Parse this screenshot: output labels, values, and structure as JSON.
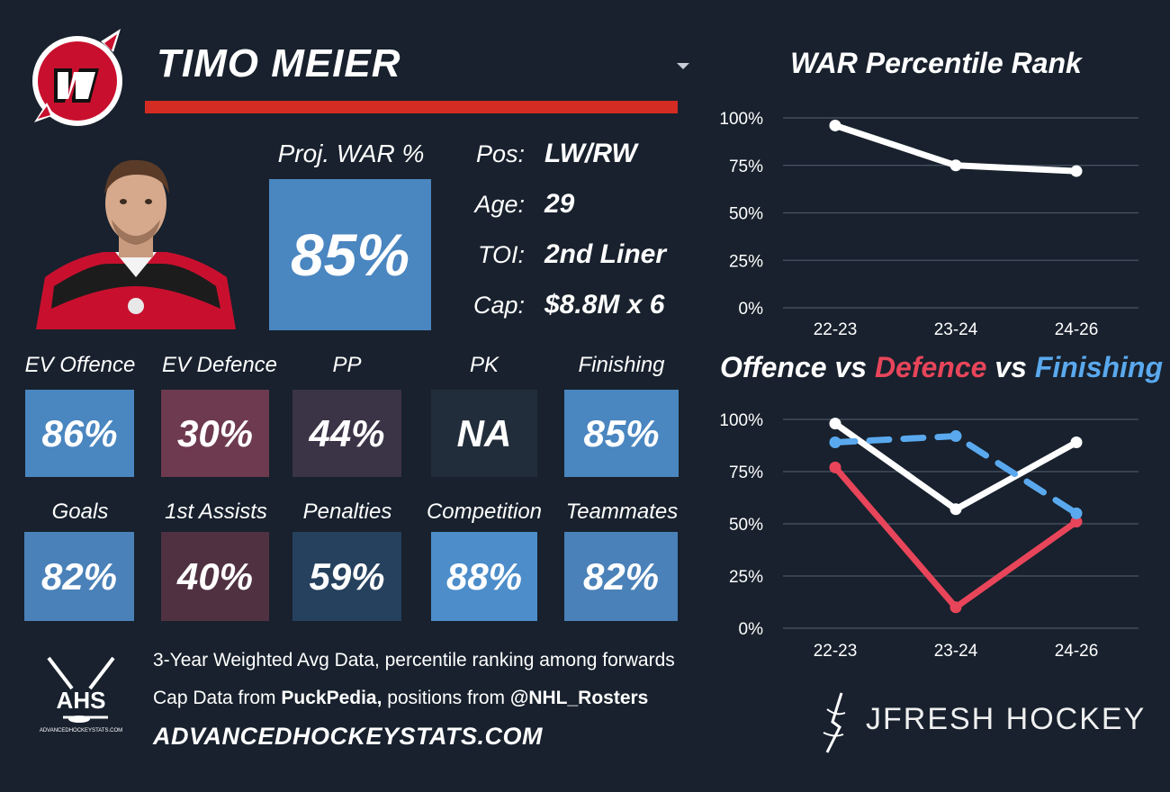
{
  "header": {
    "player_name": "TIMO MEIER",
    "team_logo": "nj-devils-logo",
    "dropdown_icon": "caret-down-icon"
  },
  "proj_war": {
    "label": "Proj. WAR %",
    "value": "85%"
  },
  "info": [
    {
      "label": "Pos:",
      "value": "LW/RW"
    },
    {
      "label": "Age:",
      "value": "29"
    },
    {
      "label": "TOI:",
      "value": "2nd Liner"
    },
    {
      "label": "Cap:",
      "value": "$8.8M x 6"
    }
  ],
  "stats_row1": [
    {
      "label": "EV Offence",
      "value": "86%",
      "color": "#4a86c0"
    },
    {
      "label": "EV Defence",
      "value": "30%",
      "color": "#6e3a4f"
    },
    {
      "label": "PP",
      "value": "44%",
      "color": "#3b3346"
    },
    {
      "label": "PK",
      "value": "NA",
      "color": "#222d3b"
    },
    {
      "label": "Finishing",
      "value": "85%",
      "color": "#4a86c0"
    }
  ],
  "stats_row2": [
    {
      "label": "Goals",
      "value": "82%",
      "color": "#4a81b8"
    },
    {
      "label": "1st Assists",
      "value": "40%",
      "color": "#503142"
    },
    {
      "label": "Penalties",
      "value": "59%",
      "color": "#26415e"
    },
    {
      "label": "Competition",
      "value": "88%",
      "color": "#4c8dca"
    },
    {
      "label": "Teammates",
      "value": "82%",
      "color": "#4a81b8"
    }
  ],
  "footer": {
    "line1": "3-Year Weighted Avg Data, percentile ranking among forwards",
    "line2_prefix": "Cap Data from ",
    "line2_source": "PuckPedia,",
    "line2_mid": " positions from ",
    "line2_handle": "@NHL_Rosters",
    "site": "ADVANCEDHOCKEYSTATS.COM",
    "ahs_logo_text": "AHS",
    "ahs_logo_caption": "ADVANCEDHOCKEYSTATS.COM",
    "brand": "JFRESH HOCKEY"
  },
  "chart_data": [
    {
      "type": "line",
      "title": "WAR Percentile Rank",
      "categories": [
        "22-23",
        "23-24",
        "24-26"
      ],
      "ylim": [
        0,
        100
      ],
      "yticks": [
        "0%",
        "25%",
        "50%",
        "75%",
        "100%"
      ],
      "grid": true,
      "series": [
        {
          "values": [
            96,
            75,
            72
          ],
          "color": "#ffffff",
          "dashed": false
        }
      ]
    },
    {
      "type": "line",
      "title_parts": [
        {
          "text": "Offence",
          "color": "#ffffff"
        },
        {
          "text": " vs ",
          "color": "#ffffff"
        },
        {
          "text": "Defence",
          "color": "#e8455a"
        },
        {
          "text": " vs ",
          "color": "#ffffff"
        },
        {
          "text": "Finishing",
          "color": "#5aa9ee"
        }
      ],
      "categories": [
        "22-23",
        "23-24",
        "24-26"
      ],
      "ylim": [
        0,
        100
      ],
      "yticks": [
        "0%",
        "25%",
        "50%",
        "75%",
        "100%"
      ],
      "grid": true,
      "series": [
        {
          "values": [
            98,
            57,
            89
          ],
          "color": "#ffffff",
          "dashed": false
        },
        {
          "values": [
            77,
            10,
            51
          ],
          "color": "#e8455a",
          "dashed": false
        },
        {
          "values": [
            89,
            92,
            55
          ],
          "color": "#5aa9ee",
          "dashed": true
        }
      ]
    }
  ]
}
